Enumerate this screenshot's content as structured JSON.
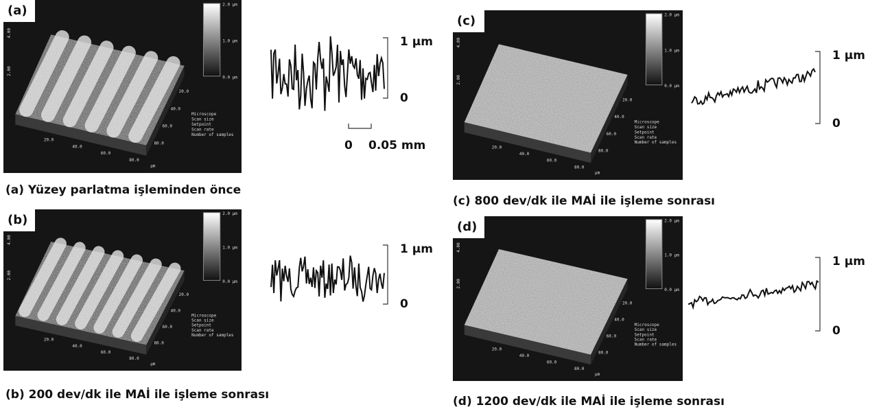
{
  "panels": [
    {
      "label": "(a)",
      "caption": "(a) Yüzey parlatma işleminden önce",
      "scale_top": "1 µm",
      "scale_bottom": "0"
    },
    {
      "label": "(b)",
      "caption": "(b) 200 dev/dk ile MAİ ile işleme sonrası",
      "scale_top": "1 µm",
      "scale_bottom": "0"
    },
    {
      "label": "(c)",
      "caption": "(c) 800 dev/dk ile MAİ ile işleme sonrası",
      "scale_top": "1 µm",
      "scale_bottom": "0"
    },
    {
      "label": "(d)",
      "caption": "(d) 1200 dev/dk ile MAİ ile işleme sonrası",
      "scale_top": "1 µm",
      "scale_bottom": "0"
    }
  ],
  "scale_bar": {
    "start": "0",
    "end": "0.05 mm"
  },
  "afm": {
    "colorbar": [
      "2.0 µm",
      "1.0 µm",
      "0.0 µm"
    ],
    "z_ticks": [
      "4.00",
      "2.00"
    ],
    "x_ticks": [
      "20.0",
      "40.0",
      "60.0",
      "80.0"
    ],
    "unit": "µm",
    "params": [
      "Microscope",
      "Scan size",
      "Setpoint",
      "Scan rate",
      "Number of samples"
    ]
  }
}
